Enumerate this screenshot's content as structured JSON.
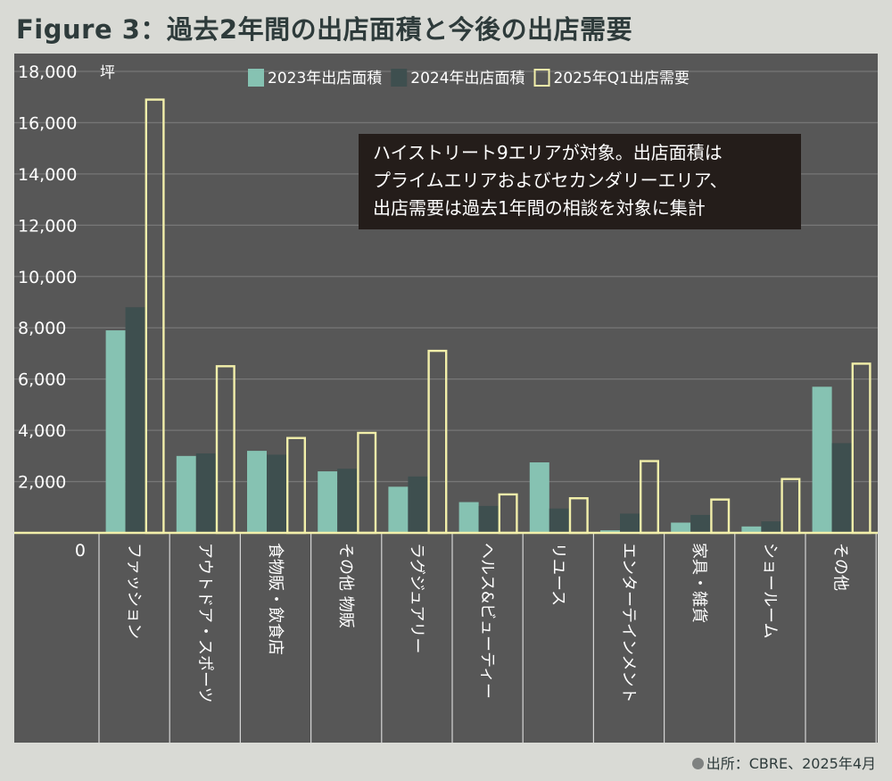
{
  "title": "Figure 3：過去2年間の出店面積と今後の出店需要",
  "note_lines": [
    "ハイストリート9エリアが対象。出店面積は",
    "プライムエリアおよびセカンダリーエリア、",
    "出店需要は過去1年間の相談を対象に集計"
  ],
  "source": "出所：CBRE、2025年4月",
  "colors": {
    "background": "#d9dad5",
    "panel": "#575757",
    "series_2023": "#86c2b2",
    "series_2024": "#3e4f4f",
    "series_2025q1": "#f2efaa",
    "note_box": "#241d1a"
  },
  "chart_data": {
    "type": "bar",
    "y_unit": "坪",
    "ylim": [
      0,
      18000
    ],
    "yticks": [
      "0",
      "2,000",
      "4,000",
      "6,000",
      "8,000",
      "10,000",
      "12,000",
      "14,000",
      "16,000",
      "18,000"
    ],
    "grid": true,
    "legend_position": "top-right",
    "categories": [
      "ファッション",
      "アウトドア・スポーツ",
      "食物販・飲食店",
      "その他 物販",
      "ラグジュアリー",
      "ヘルス&ビューティー",
      "リユース",
      "エンターテインメント",
      "家具・雑貨",
      "ショールーム",
      "その他"
    ],
    "series": [
      {
        "name": "2023年出店面積",
        "values": [
          7900,
          3000,
          3200,
          2400,
          1800,
          1200,
          2750,
          100,
          400,
          250,
          5700
        ]
      },
      {
        "name": "2024年出店面積",
        "values": [
          8800,
          3100,
          3050,
          2500,
          2200,
          1050,
          950,
          750,
          700,
          450,
          3500
        ]
      },
      {
        "name": "2025年Q1出店需要",
        "values": [
          16900,
          6500,
          3700,
          3900,
          7100,
          1500,
          1350,
          2800,
          1300,
          2100,
          6600
        ]
      }
    ]
  }
}
